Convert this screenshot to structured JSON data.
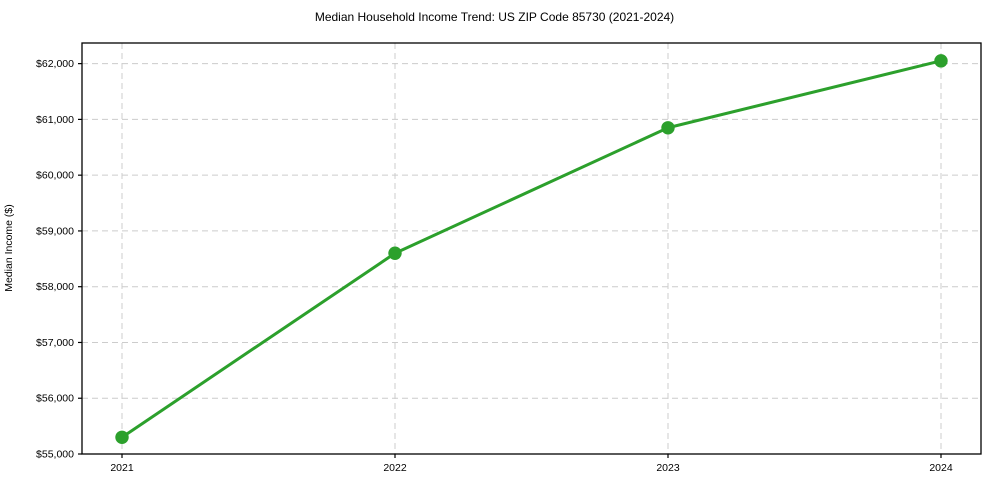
{
  "figure": {
    "background": "#ffffff"
  },
  "chart_data": {
    "type": "line",
    "title": "Median Household Income Trend: US ZIP Code 85730 (2021-2024)",
    "xlabel": "",
    "ylabel": "Median Income ($)",
    "x": [
      2021,
      2022,
      2023,
      2024
    ],
    "x_tick_labels": [
      "2021",
      "2022",
      "2023",
      "2024"
    ],
    "series": [
      {
        "name": "Median Income",
        "values": [
          55300,
          58600,
          60850,
          62050
        ],
        "color": "#2ca02c",
        "marker": "circle",
        "line_style": "solid"
      }
    ],
    "y_ticks": [
      {
        "value": 55000,
        "label": "$55,000"
      },
      {
        "value": 56000,
        "label": "$56,000"
      },
      {
        "value": 57000,
        "label": "$57,000"
      },
      {
        "value": 58000,
        "label": "$58,000"
      },
      {
        "value": 59000,
        "label": "$59,000"
      },
      {
        "value": 60000,
        "label": "$60,000"
      },
      {
        "value": 61000,
        "label": "$61,000"
      },
      {
        "value": 62000,
        "label": "$62,000"
      }
    ],
    "ylim": [
      55000,
      62370
    ],
    "grid": {
      "visible": true,
      "line_style": "dashed",
      "color": "#cccccc"
    },
    "axes_color": "#000000",
    "text_color": "#000000",
    "legend": "none"
  }
}
